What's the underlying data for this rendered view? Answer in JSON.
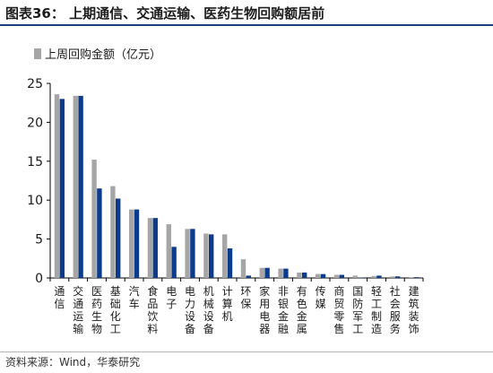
{
  "title": "图表36：  上期通信、交通运输、医药生物回购额居前",
  "source": "资料来源：Wind，华泰研究",
  "colors": {
    "grey": "#a6a6a6",
    "blue": "#0d3b8c",
    "accent": "#1f3f7a"
  },
  "chart_data": {
    "type": "bar",
    "categories": [
      "通信",
      "交通运输",
      "医药生物",
      "基础化工",
      "汽车",
      "食品饮料",
      "电子",
      "电力设备",
      "机械设备",
      "计算机",
      "环保",
      "家用电器",
      "非银金融",
      "有色金属",
      "传媒",
      "商贸零售",
      "国防军工",
      "轻工制造",
      "社会服务",
      "建筑装饰"
    ],
    "series": [
      {
        "name": "上周回购金额（亿元）",
        "color": "#a6a6a6",
        "values": [
          23.6,
          23.4,
          15.2,
          11.8,
          8.8,
          7.7,
          6.9,
          6.3,
          5.7,
          5.6,
          2.4,
          1.3,
          1.2,
          0.7,
          0.5,
          0.4,
          0.3,
          0.25,
          0.2,
          0.1
        ]
      },
      {
        "name": "",
        "color": "#0d3b8c",
        "values": [
          23.0,
          23.4,
          11.5,
          10.2,
          8.8,
          7.7,
          4.0,
          6.3,
          5.6,
          3.8,
          0.3,
          1.3,
          1.2,
          0.7,
          0.5,
          0.4,
          0.05,
          0.3,
          0.2,
          0.1
        ]
      }
    ],
    "ylim": [
      0,
      25
    ],
    "yticks": [
      0,
      5,
      10,
      15,
      20,
      25
    ],
    "grid": false,
    "legend_position": "top-left"
  }
}
